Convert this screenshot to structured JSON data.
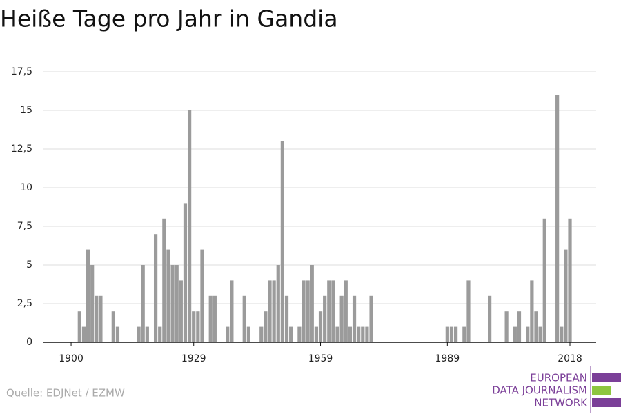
{
  "chart_data": {
    "type": "bar",
    "title": "Heiße Tage pro Jahr in Gandia",
    "source": "Quelle: EDJNet / EZMW",
    "logo": [
      "EUROPEAN",
      "DATA JOURNALISM",
      "NETWORK"
    ],
    "color": "#9b9b9b",
    "x": [
      1902,
      1903,
      1904,
      1905,
      1906,
      1907,
      1910,
      1911,
      1916,
      1917,
      1918,
      1920,
      1921,
      1922,
      1923,
      1924,
      1925,
      1926,
      1927,
      1928,
      1929,
      1930,
      1931,
      1933,
      1934,
      1937,
      1938,
      1941,
      1942,
      1945,
      1946,
      1947,
      1948,
      1949,
      1950,
      1951,
      1952,
      1954,
      1955,
      1956,
      1957,
      1958,
      1959,
      1960,
      1961,
      1962,
      1963,
      1964,
      1965,
      1966,
      1967,
      1968,
      1969,
      1970,
      1971,
      1989,
      1990,
      1991,
      1993,
      1994,
      1999,
      2003,
      2005,
      2006,
      2008,
      2009,
      2010,
      2011,
      2012,
      2015,
      2016,
      2017,
      2018
    ],
    "values": [
      2,
      1,
      6,
      5,
      3,
      3,
      2,
      1,
      1,
      5,
      1,
      7,
      1,
      8,
      6,
      5,
      5,
      4,
      9,
      15,
      2,
      2,
      6,
      3,
      3,
      1,
      4,
      3,
      1,
      1,
      2,
      4,
      4,
      5,
      13,
      3,
      1,
      1,
      4,
      4,
      5,
      1,
      2,
      3,
      4,
      4,
      1,
      3,
      4,
      1,
      3,
      1,
      1,
      1,
      3,
      1,
      1,
      1,
      1,
      4,
      3,
      2,
      1,
      2,
      1,
      4,
      2,
      1,
      8,
      16,
      1,
      6,
      8
    ],
    "xlim": [
      1893.3,
      2024.2
    ],
    "xticks": [
      1900,
      1929,
      1959,
      1989,
      2018
    ],
    "ylim": [
      0,
      17.5
    ],
    "yticks": [
      0,
      {
        "value": 2.5,
        "label": "2,5"
      },
      5,
      {
        "value": 7.5,
        "label": "7,5"
      },
      10,
      {
        "value": 12.5,
        "label": "12,5"
      },
      15,
      {
        "value": 17.5,
        "label": "17,5"
      }
    ],
    "grid": true
  }
}
